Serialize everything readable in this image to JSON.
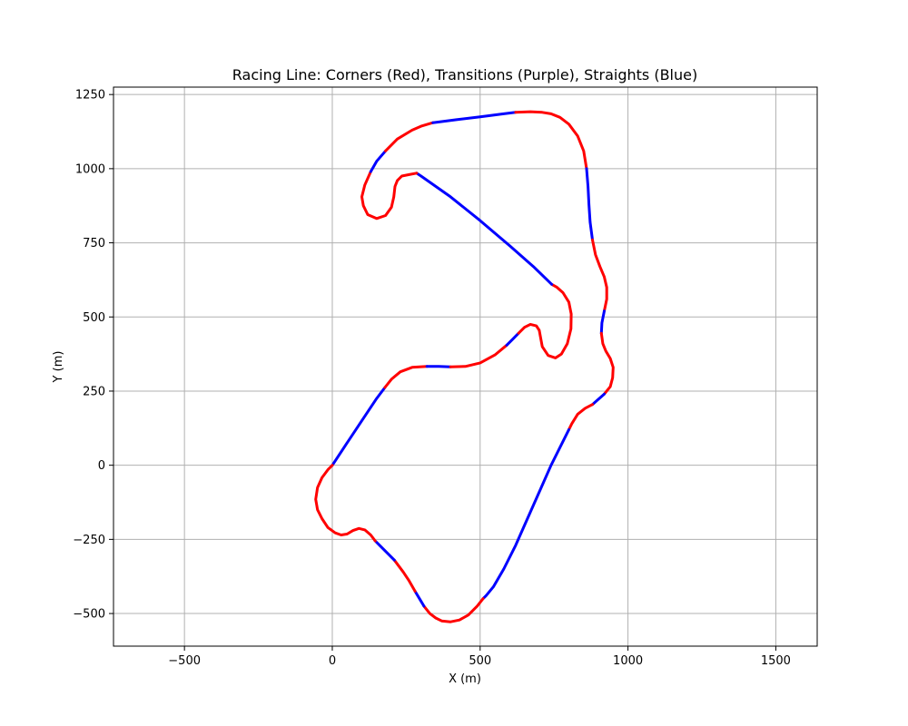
{
  "chart_data": {
    "type": "line",
    "title": "Racing Line: Corners (Red), Transitions (Purple), Straights (Blue)",
    "xlabel": "X (m)",
    "ylabel": "Y (m)",
    "xlim": [
      -740,
      1640
    ],
    "ylim": [
      -610,
      1275
    ],
    "x_ticks": [
      -500,
      0,
      500,
      1000,
      1500
    ],
    "y_ticks": [
      -500,
      -250,
      0,
      250,
      500,
      750,
      1000,
      1250
    ],
    "x_tick_labels": [
      "−500",
      "0",
      "500",
      "1000",
      "1500"
    ],
    "y_tick_labels": [
      "−500",
      "−250",
      "0",
      "250",
      "500",
      "750",
      "1000",
      "1250"
    ],
    "grid": true,
    "legend": "none",
    "colors": {
      "corner": "#ff0000",
      "transition": "#8000c0",
      "straight": "#0000ff",
      "grid": "#b0b0b0"
    },
    "segments": [
      {
        "category": "straight",
        "x": [
          0,
          50,
          100,
          150,
          178
        ],
        "y": [
          0,
          75,
          150,
          225,
          262
        ]
      },
      {
        "category": "corner",
        "x": [
          178,
          200,
          230,
          270,
          320
        ],
        "y": [
          262,
          290,
          315,
          330,
          333
        ]
      },
      {
        "category": "straight",
        "x": [
          320,
          360,
          400
        ],
        "y": [
          333,
          333,
          332
        ]
      },
      {
        "category": "corner",
        "x": [
          400,
          450,
          500,
          550,
          590
        ],
        "y": [
          332,
          333,
          345,
          372,
          405
        ]
      },
      {
        "category": "straight",
        "x": [
          590,
          610,
          630
        ],
        "y": [
          405,
          425,
          445
        ]
      },
      {
        "category": "corner",
        "x": [
          630,
          650,
          670,
          690,
          700,
          710,
          730,
          755,
          775,
          795,
          807,
          808,
          800,
          780,
          760,
          742
        ],
        "y": [
          445,
          465,
          475,
          470,
          455,
          400,
          370,
          362,
          375,
          410,
          460,
          510,
          550,
          582,
          600,
          610
        ]
      },
      {
        "category": "straight",
        "x": [
          742,
          680,
          600,
          500,
          400,
          300,
          285
        ],
        "y": [
          610,
          670,
          740,
          825,
          905,
          975,
          985
        ]
      },
      {
        "category": "corner",
        "x": [
          285,
          260,
          235,
          220,
          212,
          208,
          200,
          180,
          150,
          120,
          105,
          100,
          110,
          130
        ],
        "y": [
          985,
          980,
          975,
          960,
          940,
          905,
          870,
          842,
          832,
          845,
          875,
          905,
          945,
          990
        ]
      },
      {
        "category": "straight",
        "x": [
          130,
          150,
          180
        ],
        "y": [
          990,
          1025,
          1060
        ]
      },
      {
        "category": "corner",
        "x": [
          180,
          220,
          270,
          300,
          340
        ],
        "y": [
          1060,
          1100,
          1130,
          1143,
          1155
        ]
      },
      {
        "category": "straight",
        "x": [
          340,
          420,
          500,
          580,
          620
        ],
        "y": [
          1155,
          1165,
          1175,
          1185,
          1190
        ]
      },
      {
        "category": "corner",
        "x": [
          620,
          670,
          710,
          740,
          770,
          800,
          830,
          850,
          860
        ],
        "y": [
          1190,
          1192,
          1190,
          1185,
          1173,
          1150,
          1110,
          1060,
          1000
        ]
      },
      {
        "category": "straight",
        "x": [
          860,
          865,
          868,
          872,
          880
        ],
        "y": [
          1000,
          940,
          880,
          820,
          760
        ]
      },
      {
        "category": "corner",
        "x": [
          880,
          890,
          905,
          920,
          928,
          928,
          920
        ],
        "y": [
          760,
          710,
          670,
          635,
          600,
          560,
          520
        ]
      },
      {
        "category": "straight",
        "x": [
          920,
          912,
          910
        ],
        "y": [
          520,
          480,
          445
        ]
      },
      {
        "category": "corner",
        "x": [
          910,
          915,
          925,
          940,
          950,
          948,
          940,
          920
        ],
        "y": [
          445,
          410,
          385,
          360,
          330,
          295,
          265,
          240
        ]
      },
      {
        "category": "straight",
        "x": [
          920,
          895,
          880
        ],
        "y": [
          240,
          218,
          205
        ]
      },
      {
        "category": "corner",
        "x": [
          880,
          855,
          830,
          810,
          800
        ],
        "y": [
          205,
          192,
          172,
          140,
          120
        ]
      },
      {
        "category": "straight",
        "x": [
          800,
          770,
          740,
          700,
          660,
          620,
          580,
          545,
          520,
          510
        ],
        "y": [
          120,
          60,
          0,
          -90,
          -180,
          -270,
          -350,
          -410,
          -440,
          -450
        ]
      },
      {
        "category": "corner",
        "x": [
          510,
          490,
          460,
          430,
          400,
          370,
          350,
          330,
          310
        ],
        "y": [
          -450,
          -475,
          -505,
          -522,
          -528,
          -525,
          -515,
          -500,
          -475
        ]
      },
      {
        "category": "straight",
        "x": [
          310,
          295,
          280
        ],
        "y": [
          -475,
          -450,
          -425
        ]
      },
      {
        "category": "corner",
        "x": [
          280,
          260,
          240,
          210
        ],
        "y": [
          -425,
          -390,
          -360,
          -320
        ]
      },
      {
        "category": "straight",
        "x": [
          210,
          185,
          160,
          145
        ],
        "y": [
          -320,
          -295,
          -270,
          -255
        ]
      },
      {
        "category": "corner",
        "x": [
          145,
          130,
          110,
          90,
          70,
          50,
          30,
          10,
          -15,
          -35,
          -50,
          -56,
          -50,
          -35,
          -15,
          0
        ],
        "y": [
          -255,
          -235,
          -218,
          -213,
          -220,
          -232,
          -235,
          -228,
          -210,
          -180,
          -150,
          -115,
          -75,
          -42,
          -15,
          0
        ]
      }
    ]
  }
}
